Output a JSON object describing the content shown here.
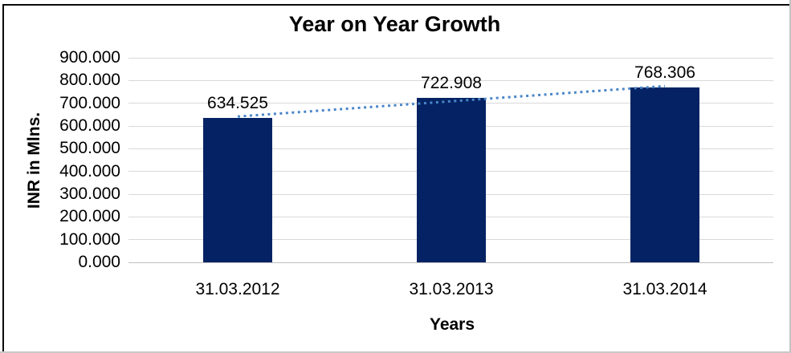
{
  "chart_data": {
    "type": "bar",
    "title": "Year on Year Growth",
    "xlabel": "Years",
    "ylabel": "INR in Mlns.",
    "categories": [
      "31.03.2012",
      "31.03.2013",
      "31.03.2014"
    ],
    "values": [
      634.525,
      722.908,
      768.306
    ],
    "value_labels": [
      "634.525",
      "722.908",
      "768.306"
    ],
    "yticks": [
      "900.000",
      "800.000",
      "700.000",
      "600.000",
      "500.000",
      "400.000",
      "300.000",
      "200.000",
      "100.000",
      "0.000"
    ],
    "ylim": [
      0,
      900
    ],
    "grid": "horizontal",
    "legend": "none",
    "trendline": {
      "type": "linear",
      "style": "dotted",
      "color": "#4a86c8"
    },
    "colors": {
      "bar": "#052364",
      "gridline": "#d9d9d9",
      "axis_line": "#bfbfbf",
      "text": "#000000",
      "background": "#ffffff"
    }
  }
}
